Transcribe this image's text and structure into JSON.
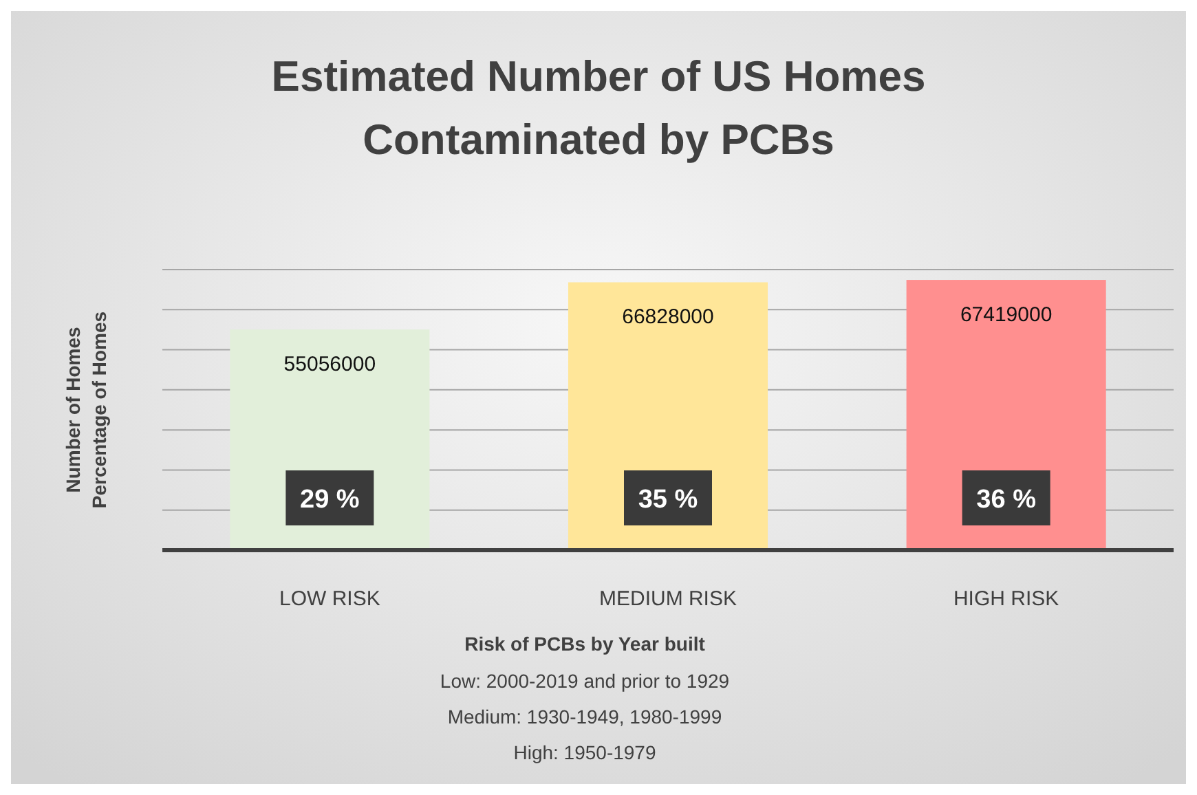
{
  "chart_data": {
    "type": "bar",
    "title": "Estimated Number of US Homes\nContaminated by PCBs",
    "ylabel": "Number of Homes\nPercentage of Homes",
    "xlabel": "Risk of PCBs by Year built",
    "categories": [
      "LOW RISK",
      "MEDIUM RISK",
      "HIGH RISK"
    ],
    "values": [
      55056000,
      66828000,
      67419000
    ],
    "colors": [
      "#e2efda",
      "#ffe699",
      "#ff8f8f"
    ],
    "ylim": [
      0,
      70000000
    ],
    "yticks": [
      {
        "value": 0,
        "label": null
      },
      {
        "value": 10000000,
        "label": null
      },
      {
        "value": 20000000,
        "label": null
      },
      {
        "value": 30000000,
        "label": null
      },
      {
        "value": 40000000,
        "label": null
      },
      {
        "value": 50000000,
        "label": null
      },
      {
        "value": 60000000,
        "label": null
      },
      {
        "value": 70000000,
        "label": null
      }
    ],
    "grid": "y",
    "data_labels": true,
    "tick_labels": "x",
    "annotations": [
      "29 %",
      "35 %",
      "36 %",
      "Low: 2000-2019 and prior to 1929",
      "Medium: 1930-1949, 1980-1999",
      "High: 1950-1979"
    ]
  }
}
